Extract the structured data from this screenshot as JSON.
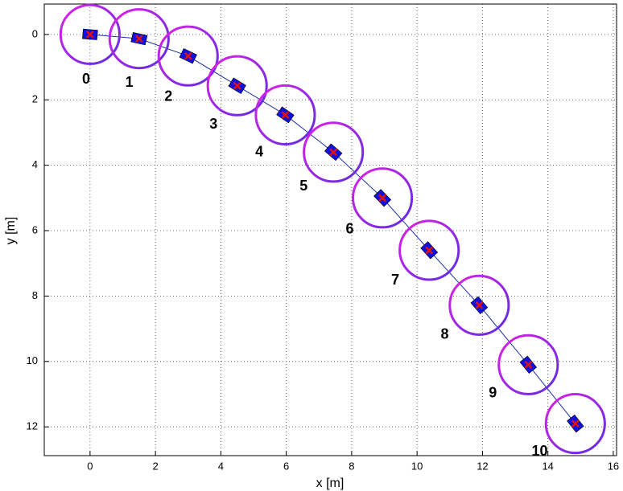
{
  "chart_data": {
    "type": "scatter",
    "xlabel": "x [m]",
    "ylabel": "y [m]",
    "x": [
      0,
      1.5,
      3.0,
      4.5,
      5.97,
      7.44,
      8.94,
      10.37,
      11.9,
      13.4,
      14.84
    ],
    "values": [
      0,
      0.13,
      0.66,
      1.57,
      2.46,
      3.6,
      5.0,
      6.6,
      8.28,
      10.1,
      11.9
    ],
    "point_labels": [
      "0",
      "1",
      "2",
      "3",
      "4",
      "5",
      "6",
      "7",
      "8",
      "9",
      "10"
    ],
    "radius": 0.9,
    "xlim": [
      -1.4,
      16.1
    ],
    "ylim": [
      -0.93,
      12.88
    ],
    "y_reversed": true,
    "xticks": [
      0,
      2,
      4,
      6,
      8,
      10,
      12,
      14,
      16
    ],
    "yticks": [
      0,
      2,
      4,
      6,
      8,
      10,
      12
    ],
    "grid": true,
    "path_color": "#1a2fa0",
    "robot_color": "#1010e0",
    "marker_color": "#e01010"
  }
}
